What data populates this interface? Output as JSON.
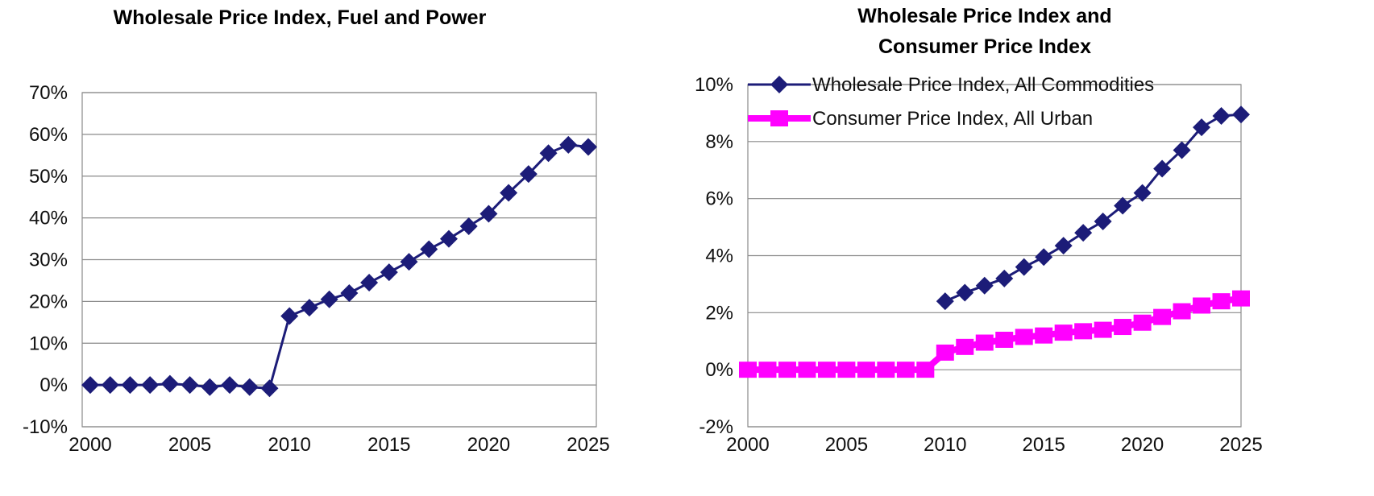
{
  "chart_data": [
    {
      "type": "line",
      "title": "Wholesale Price Index, Fuel and Power",
      "xlabel": "",
      "ylabel": "",
      "x": [
        2000,
        2001,
        2002,
        2003,
        2004,
        2005,
        2006,
        2007,
        2008,
        2009,
        2010,
        2011,
        2012,
        2013,
        2014,
        2015,
        2016,
        2017,
        2018,
        2019,
        2020,
        2021,
        2022,
        2023,
        2024,
        2025
      ],
      "xlim": [
        2000,
        2025
      ],
      "ylim": [
        -10,
        70
      ],
      "x_ticks": [
        "2000",
        "2005",
        "2010",
        "2015",
        "2020",
        "2025"
      ],
      "y_ticks": [
        "-10%",
        "0%",
        "10%",
        "20%",
        "30%",
        "40%",
        "50%",
        "60%",
        "70%"
      ],
      "grid": "horizontal",
      "series": [
        {
          "values": [
            0.0,
            0.0,
            0.0,
            0.0,
            0.3,
            0.0,
            -0.5,
            0.0,
            -0.5,
            -0.8,
            16.5,
            18.5,
            20.5,
            22.0,
            24.5,
            27.0,
            29.5,
            32.5,
            35.0,
            38.0,
            41.0,
            46.0,
            50.5,
            55.5,
            57.5,
            57.0
          ],
          "color": "#1c1c78"
        }
      ]
    },
    {
      "type": "line",
      "title": [
        "Wholesale Price Index and",
        "Consumer Price Index"
      ],
      "xlabel": "",
      "ylabel": "",
      "x": [
        2000,
        2001,
        2002,
        2003,
        2004,
        2005,
        2006,
        2007,
        2008,
        2009,
        2010,
        2011,
        2012,
        2013,
        2014,
        2015,
        2016,
        2017,
        2018,
        2019,
        2020,
        2021,
        2022,
        2023,
        2024,
        2025
      ],
      "xlim": [
        2000,
        2025
      ],
      "ylim": [
        -2,
        10
      ],
      "x_ticks": [
        "2000",
        "2005",
        "2010",
        "2015",
        "2020",
        "2025"
      ],
      "y_ticks": [
        "-2%",
        "0%",
        "2%",
        "4%",
        "6%",
        "8%",
        "10%"
      ],
      "grid": "horizontal",
      "legend": "top-left",
      "series": [
        {
          "name": "Wholesale Price Index, All Commodities",
          "values": [
            null,
            null,
            null,
            null,
            null,
            null,
            null,
            null,
            null,
            null,
            2.4,
            2.7,
            2.95,
            3.2,
            3.6,
            3.95,
            4.35,
            4.8,
            5.2,
            5.75,
            6.2,
            7.05,
            7.7,
            8.5,
            8.9,
            8.95
          ],
          "color": "#1c1c78",
          "marker": "diamond"
        },
        {
          "name": "Consumer Price Index, All Urban",
          "values": [
            0,
            0,
            0,
            0,
            0,
            0,
            0,
            0,
            0,
            0,
            0.6,
            0.8,
            0.95,
            1.05,
            1.15,
            1.2,
            1.3,
            1.35,
            1.4,
            1.5,
            1.65,
            1.85,
            2.05,
            2.25,
            2.4,
            2.5
          ],
          "color": "#ff00ff",
          "marker": "square"
        }
      ]
    }
  ]
}
